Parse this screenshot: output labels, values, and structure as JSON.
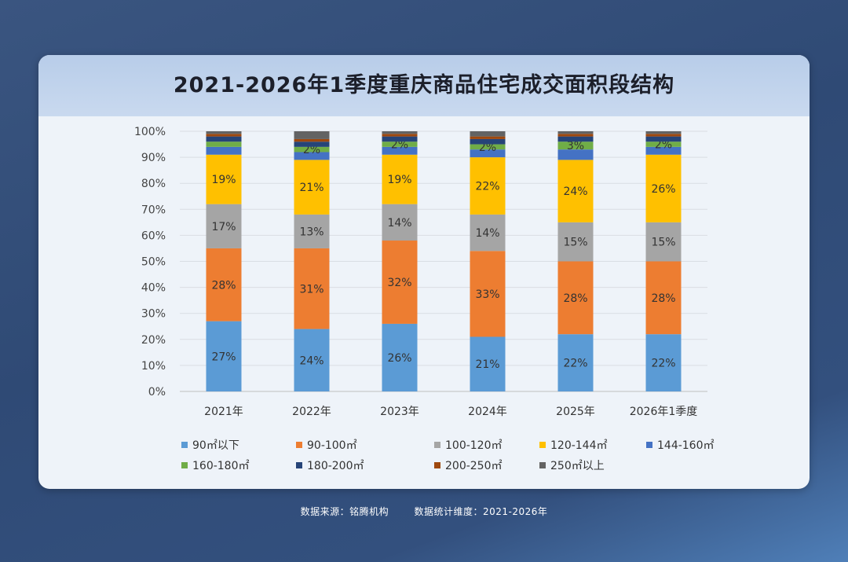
{
  "chart_data": {
    "type": "bar",
    "stacked": true,
    "title": "2021-2026年1季度重庆商品住宅成交面积段结构",
    "categories": [
      "2021年",
      "2022年",
      "2023年",
      "2024年",
      "2025年",
      "2026年1季度"
    ],
    "ylim": [
      0,
      100
    ],
    "yticks": [
      "0%",
      "10%",
      "20%",
      "30%",
      "40%",
      "50%",
      "60%",
      "70%",
      "80%",
      "90%",
      "100%"
    ],
    "series": [
      {
        "name": "90㎡以下",
        "color": "#5b9bd5",
        "values": [
          27,
          24,
          26,
          21,
          22,
          22
        ]
      },
      {
        "name": "90-100㎡",
        "color": "#ed7d31",
        "values": [
          28,
          31,
          32,
          33,
          28,
          28
        ]
      },
      {
        "name": "100-120㎡",
        "color": "#a5a5a5",
        "values": [
          17,
          13,
          14,
          14,
          15,
          15
        ]
      },
      {
        "name": "120-144㎡",
        "color": "#ffc000",
        "values": [
          19,
          21,
          19,
          22,
          24,
          26
        ]
      },
      {
        "name": "144-160㎡",
        "color": "#4472c4",
        "values": [
          3,
          3,
          3,
          3,
          4,
          3
        ]
      },
      {
        "name": "160-180㎡",
        "color": "#70ad47",
        "values": [
          2,
          2,
          2,
          2,
          3,
          2
        ]
      },
      {
        "name": "180-200㎡",
        "color": "#264478",
        "values": [
          2,
          2,
          2,
          2,
          2,
          2
        ]
      },
      {
        "name": "200-250㎡",
        "color": "#9e480e",
        "values": [
          1,
          1,
          1,
          1,
          1,
          1
        ]
      },
      {
        "name": "250㎡以上",
        "color": "#636363",
        "values": [
          1,
          3,
          1,
          2,
          1,
          1
        ]
      }
    ],
    "data_labels": {
      "90㎡以下": [
        "27%",
        "24%",
        "26%",
        "21%",
        "22%",
        "22%"
      ],
      "90-100㎡": [
        "28%",
        "31%",
        "32%",
        "33%",
        "28%",
        "28%"
      ],
      "100-120㎡": [
        "17%",
        "13%",
        "14%",
        "14%",
        "15%",
        "15%"
      ],
      "120-144㎡": [
        "19%",
        "21%",
        "19%",
        "22%",
        "24%",
        "26%"
      ],
      "160-180㎡": [
        "",
        "2%",
        "2%",
        "2%",
        "3%",
        "2%"
      ]
    },
    "legend_position": "bottom"
  },
  "footer": {
    "source": "数据来源：铭腾机构",
    "scope": "数据统计维度：2021-2026年"
  }
}
